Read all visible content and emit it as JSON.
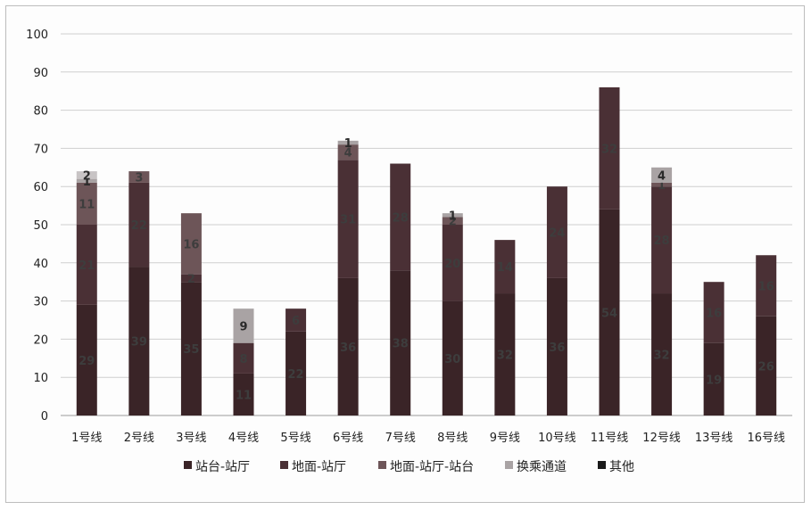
{
  "chart_data": {
    "type": "bar",
    "stacked": true,
    "categories": [
      "1号线",
      "2号线",
      "3号线",
      "4号线",
      "5号线",
      "6号线",
      "7号线",
      "8号线",
      "9号线",
      "10号线",
      "11号线",
      "12号线",
      "13号线",
      "16号线"
    ],
    "ylim": [
      0,
      100
    ],
    "yticks": [
      0,
      10,
      20,
      30,
      40,
      50,
      60,
      70,
      80,
      90,
      100
    ],
    "grid": true,
    "legend_position": "bottom",
    "series": [
      {
        "name": "站台-站厅",
        "color": "#3a2427",
        "values": [
          29,
          39,
          35,
          11,
          22,
          36,
          38,
          30,
          32,
          36,
          54,
          32,
          19,
          26
        ],
        "labels": [
          "29",
          "39",
          "35",
          "11",
          "22",
          "36",
          "38",
          "30",
          "32",
          "36",
          "54",
          "32",
          "19",
          "26"
        ]
      },
      {
        "name": "地面-站厅",
        "color": "#4a3035",
        "values": [
          21,
          22,
          2,
          8,
          6,
          31,
          28,
          20,
          14,
          24,
          32,
          28,
          16,
          16
        ],
        "labels": [
          "21",
          "22",
          "2",
          "8",
          "6",
          "31",
          "28",
          "20",
          "14",
          "24",
          "32",
          "28",
          "16",
          "16"
        ]
      },
      {
        "name": "地面-站厅-站台",
        "color": "#6d5558",
        "values": [
          11,
          3,
          16,
          0,
          0,
          4,
          0,
          2,
          0,
          0,
          0,
          1,
          0,
          0
        ],
        "labels": [
          "11",
          "3",
          "16",
          "",
          "",
          "4",
          "",
          "2",
          "",
          "",
          "",
          "1",
          "",
          ""
        ]
      },
      {
        "name": "换乘通道",
        "color": "#a9a3a4",
        "values": [
          1,
          0,
          0,
          9,
          0,
          1,
          0,
          1,
          0,
          0,
          0,
          4,
          0,
          0
        ],
        "labels": [
          "1",
          "",
          "",
          "9",
          "",
          "1",
          "",
          "1",
          "",
          "",
          "",
          "4",
          "",
          ""
        ]
      },
      {
        "name": "其他",
        "color": "#c8c4c5",
        "values": [
          2,
          0,
          0,
          0,
          0,
          0,
          0,
          0,
          0,
          0,
          0,
          0,
          0,
          0
        ],
        "labels": [
          "2",
          "",
          "",
          "",
          "",
          "",
          "",
          "",
          "",
          "",
          "",
          "",
          "",
          ""
        ]
      }
    ]
  }
}
